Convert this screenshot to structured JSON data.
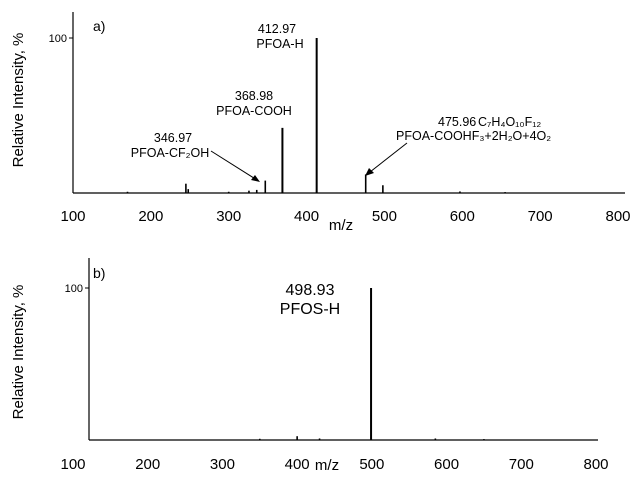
{
  "chart_data": [
    {
      "type": "line",
      "panel_label": "a)",
      "xlabel": "m/z",
      "ylabel": "Relative Intensity, %",
      "xlim": [
        100,
        800
      ],
      "ylim": [
        0,
        100
      ],
      "x_ticks": [
        100,
        200,
        300,
        400,
        500,
        600,
        700,
        800
      ],
      "y_tick_label": "100",
      "peaks": [
        {
          "x": 170,
          "y": 0.8
        },
        {
          "x": 245,
          "y": 6
        },
        {
          "x": 248,
          "y": 2.5
        },
        {
          "x": 300,
          "y": 0.8
        },
        {
          "x": 326,
          "y": 1.5
        },
        {
          "x": 336,
          "y": 2
        },
        {
          "x": 346.97,
          "y": 8
        },
        {
          "x": 368.98,
          "y": 42
        },
        {
          "x": 412.97,
          "y": 100
        },
        {
          "x": 475.96,
          "y": 12
        },
        {
          "x": 498,
          "y": 5
        },
        {
          "x": 597,
          "y": 1
        },
        {
          "x": 655,
          "y": 0.6
        }
      ],
      "annotations": [
        {
          "mz": "346.97",
          "label": "PFOA-CF₂OH"
        },
        {
          "mz": "368.98",
          "label": "PFOA-COOH"
        },
        {
          "mz": "412.97",
          "label": "PFOA-H"
        },
        {
          "mz": "475.96",
          "formula": "C₇H₄O₁₀F₁₂",
          "label": "PFOA-COOHF₃+2H₂O+4O₂"
        }
      ]
    },
    {
      "type": "line",
      "panel_label": "b)",
      "xlabel": "m/z",
      "ylabel": "Relative Intensity, %",
      "xlim": [
        100,
        800
      ],
      "ylim": [
        0,
        100
      ],
      "x_ticks": [
        100,
        200,
        300,
        400,
        500,
        600,
        700,
        800
      ],
      "y_tick_label": "100",
      "peaks": [
        {
          "x": 350,
          "y": 0.8
        },
        {
          "x": 400,
          "y": 2.5
        },
        {
          "x": 430,
          "y": 1
        },
        {
          "x": 498.93,
          "y": 100
        },
        {
          "x": 585,
          "y": 1
        },
        {
          "x": 650,
          "y": 0.6
        }
      ],
      "annotations": [
        {
          "mz": "498.93",
          "label": "PFOS-H"
        }
      ]
    }
  ]
}
